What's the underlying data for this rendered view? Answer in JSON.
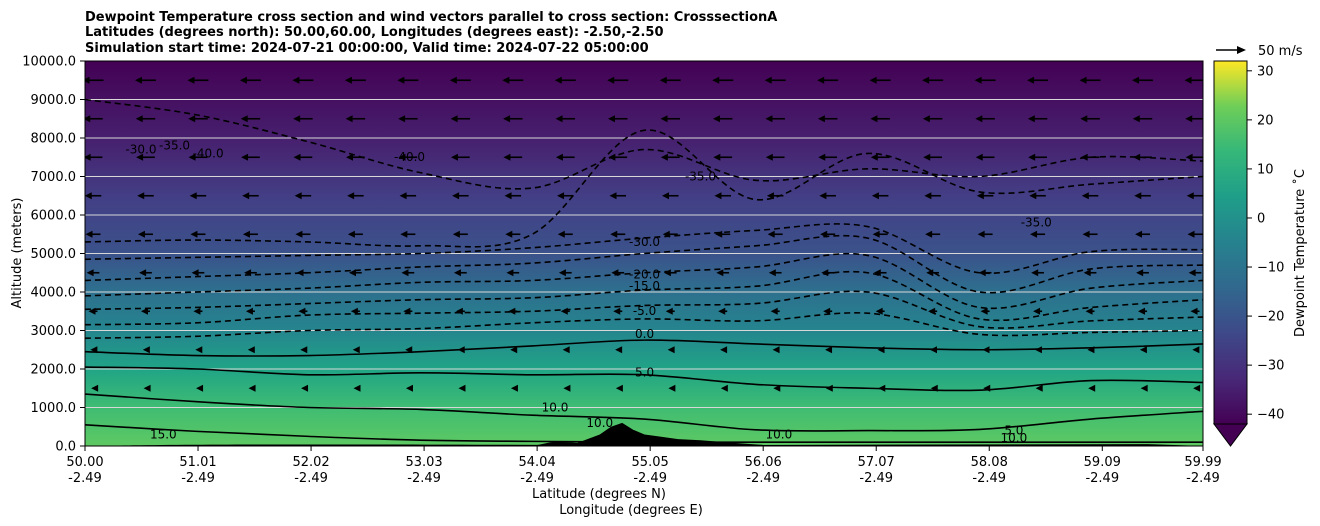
{
  "chart_data": {
    "type": "heatmap",
    "title_lines": [
      "Dewpoint Temperature cross section and wind vectors parallel to cross section: CrosssectionA",
      "Latitudes (degrees north): 50.00,60.00, Longitudes (degrees east): -2.50,-2.50",
      "Simulation start time: 2024-07-21 00:00:00, Valid time: 2024-07-22 05:00:00"
    ],
    "ylabel": "Altitude (meters)",
    "xlabel": "Latitude (degrees N)",
    "xlabel2": "Longitude (degrees E)",
    "ylim": [
      0,
      10000
    ],
    "y_ticks": [
      0,
      1000,
      2000,
      3000,
      4000,
      5000,
      6000,
      7000,
      8000,
      9000,
      10000
    ],
    "y_tick_labels": [
      "0.0",
      "1000.0",
      "2000.0",
      "3000.0",
      "4000.0",
      "5000.0",
      "6000.0",
      "7000.0",
      "8000.0",
      "9000.0",
      "10000.0"
    ],
    "x_ticks": [
      {
        "lat": "50.00",
        "lon": "-2.49"
      },
      {
        "lat": "51.01",
        "lon": "-2.49"
      },
      {
        "lat": "52.02",
        "lon": "-2.49"
      },
      {
        "lat": "53.03",
        "lon": "-2.49"
      },
      {
        "lat": "54.04",
        "lon": "-2.49"
      },
      {
        "lat": "55.05",
        "lon": "-2.49"
      },
      {
        "lat": "56.06",
        "lon": "-2.49"
      },
      {
        "lat": "57.07",
        "lon": "-2.49"
      },
      {
        "lat": "58.08",
        "lon": "-2.49"
      },
      {
        "lat": "59.09",
        "lon": "-2.49"
      },
      {
        "lat": "59.99",
        "lon": "-2.49"
      }
    ],
    "xlim": [
      50.0,
      59.99
    ],
    "colorbar": {
      "label": "Dewpoint Temperature ˚C",
      "range": [
        -42,
        32
      ],
      "ticks": [
        -40,
        -30,
        -20,
        -10,
        0,
        10,
        20,
        30
      ],
      "tick_labels": [
        "−40",
        "−30",
        "−20",
        "−10",
        "0",
        "10",
        "20",
        "30"
      ],
      "extend": "min",
      "colormap": "viridis"
    },
    "quiver_key": {
      "label": "50 m/s",
      "speed": 50
    },
    "grid": "horizontal",
    "contour_levels": [
      15,
      10,
      5,
      0,
      -5,
      -10,
      -15,
      -20,
      -25,
      -30,
      -35,
      -40
    ],
    "contours": [
      {
        "level": 15,
        "alt": [
          550,
          380,
          250,
          150,
          120,
          100,
          100,
          100,
          100,
          100,
          100
        ]
      },
      {
        "level": 10,
        "alt": [
          1350,
          1150,
          1000,
          950,
          800,
          700,
          420,
          400,
          430,
          700,
          900
        ]
      },
      {
        "level": 5,
        "alt": [
          2050,
          2000,
          1850,
          1900,
          1850,
          1850,
          1600,
          1500,
          1450,
          1700,
          1650
        ]
      },
      {
        "level": 0,
        "alt": [
          2450,
          2350,
          2350,
          2450,
          2600,
          2750,
          2650,
          2550,
          2500,
          2550,
          2650
        ]
      },
      {
        "level": -5,
        "alt": [
          2800,
          2850,
          3000,
          3050,
          3200,
          3300,
          3250,
          3450,
          2900,
          2950,
          3000
        ]
      },
      {
        "level": -10,
        "alt": [
          3150,
          3200,
          3400,
          3450,
          3500,
          3650,
          3700,
          4000,
          3100,
          3250,
          3350
        ]
      },
      {
        "level": -15,
        "alt": [
          3550,
          3600,
          3700,
          3800,
          3850,
          4050,
          4150,
          4500,
          3300,
          3600,
          3800
        ]
      },
      {
        "level": -20,
        "alt": [
          3900,
          4000,
          4100,
          4250,
          4300,
          4500,
          4650,
          4950,
          3600,
          4100,
          4300
        ]
      },
      {
        "level": -25,
        "alt": [
          4300,
          4400,
          4500,
          4650,
          4750,
          5000,
          5200,
          5400,
          4000,
          4600,
          4700
        ]
      },
      {
        "level": -30,
        "alt": [
          4850,
          4900,
          4950,
          5000,
          5150,
          5400,
          5600,
          5700,
          4500,
          5050,
          5100
        ]
      },
      {
        "level": -35,
        "alt": [
          5300,
          5350,
          5300,
          5200,
          5500,
          8200,
          6400,
          7600,
          6600,
          6800,
          7000
        ]
      },
      {
        "level": -40,
        "alt": [
          9000,
          8600,
          7900,
          7100,
          6700,
          7700,
          6900,
          7200,
          7000,
          7500,
          7400
        ]
      }
    ],
    "contour_labels": [
      {
        "text": "15.0",
        "lat": 50.7,
        "alt": 200
      },
      {
        "text": "10.0",
        "lat": 54.2,
        "alt": 900
      },
      {
        "text": "10.0",
        "lat": 54.6,
        "alt": 500
      },
      {
        "text": "10.0",
        "lat": 56.2,
        "alt": 200
      },
      {
        "text": "10.0",
        "lat": 58.3,
        "alt": 100
      },
      {
        "text": "5.0",
        "lat": 55.0,
        "alt": 1800
      },
      {
        "text": "5.0",
        "lat": 58.3,
        "alt": 300
      },
      {
        "text": "0.0",
        "lat": 55.0,
        "alt": 2800
      },
      {
        "text": "-5.0",
        "lat": 55.0,
        "alt": 3400
      },
      {
        "text": "-15.0",
        "lat": 55.0,
        "alt": 4050
      },
      {
        "text": "-20.0",
        "lat": 55.0,
        "alt": 4350
      },
      {
        "text": "-30.0",
        "lat": 55.0,
        "alt": 5200
      },
      {
        "text": "-35.0",
        "lat": 55.5,
        "alt": 6900
      },
      {
        "text": "-35.0",
        "lat": 58.5,
        "alt": 5700
      },
      {
        "text": "-35.0",
        "lat": 50.8,
        "alt": 7700
      },
      {
        "text": "-30.0",
        "lat": 50.5,
        "alt": 7600
      },
      {
        "text": "-40.0",
        "lat": 51.1,
        "alt": 7500
      },
      {
        "text": "-40.0",
        "lat": 52.9,
        "alt": 7400
      }
    ],
    "terrain_peak_alt": 600,
    "wind_rows_alt": [
      9000,
      8000,
      7000,
      6000,
      5000,
      4000,
      3000,
      2000,
      1000
    ],
    "wind_row_speed_ms": [
      28,
      26,
      25,
      22,
      20,
      17,
      12,
      7,
      5
    ]
  }
}
